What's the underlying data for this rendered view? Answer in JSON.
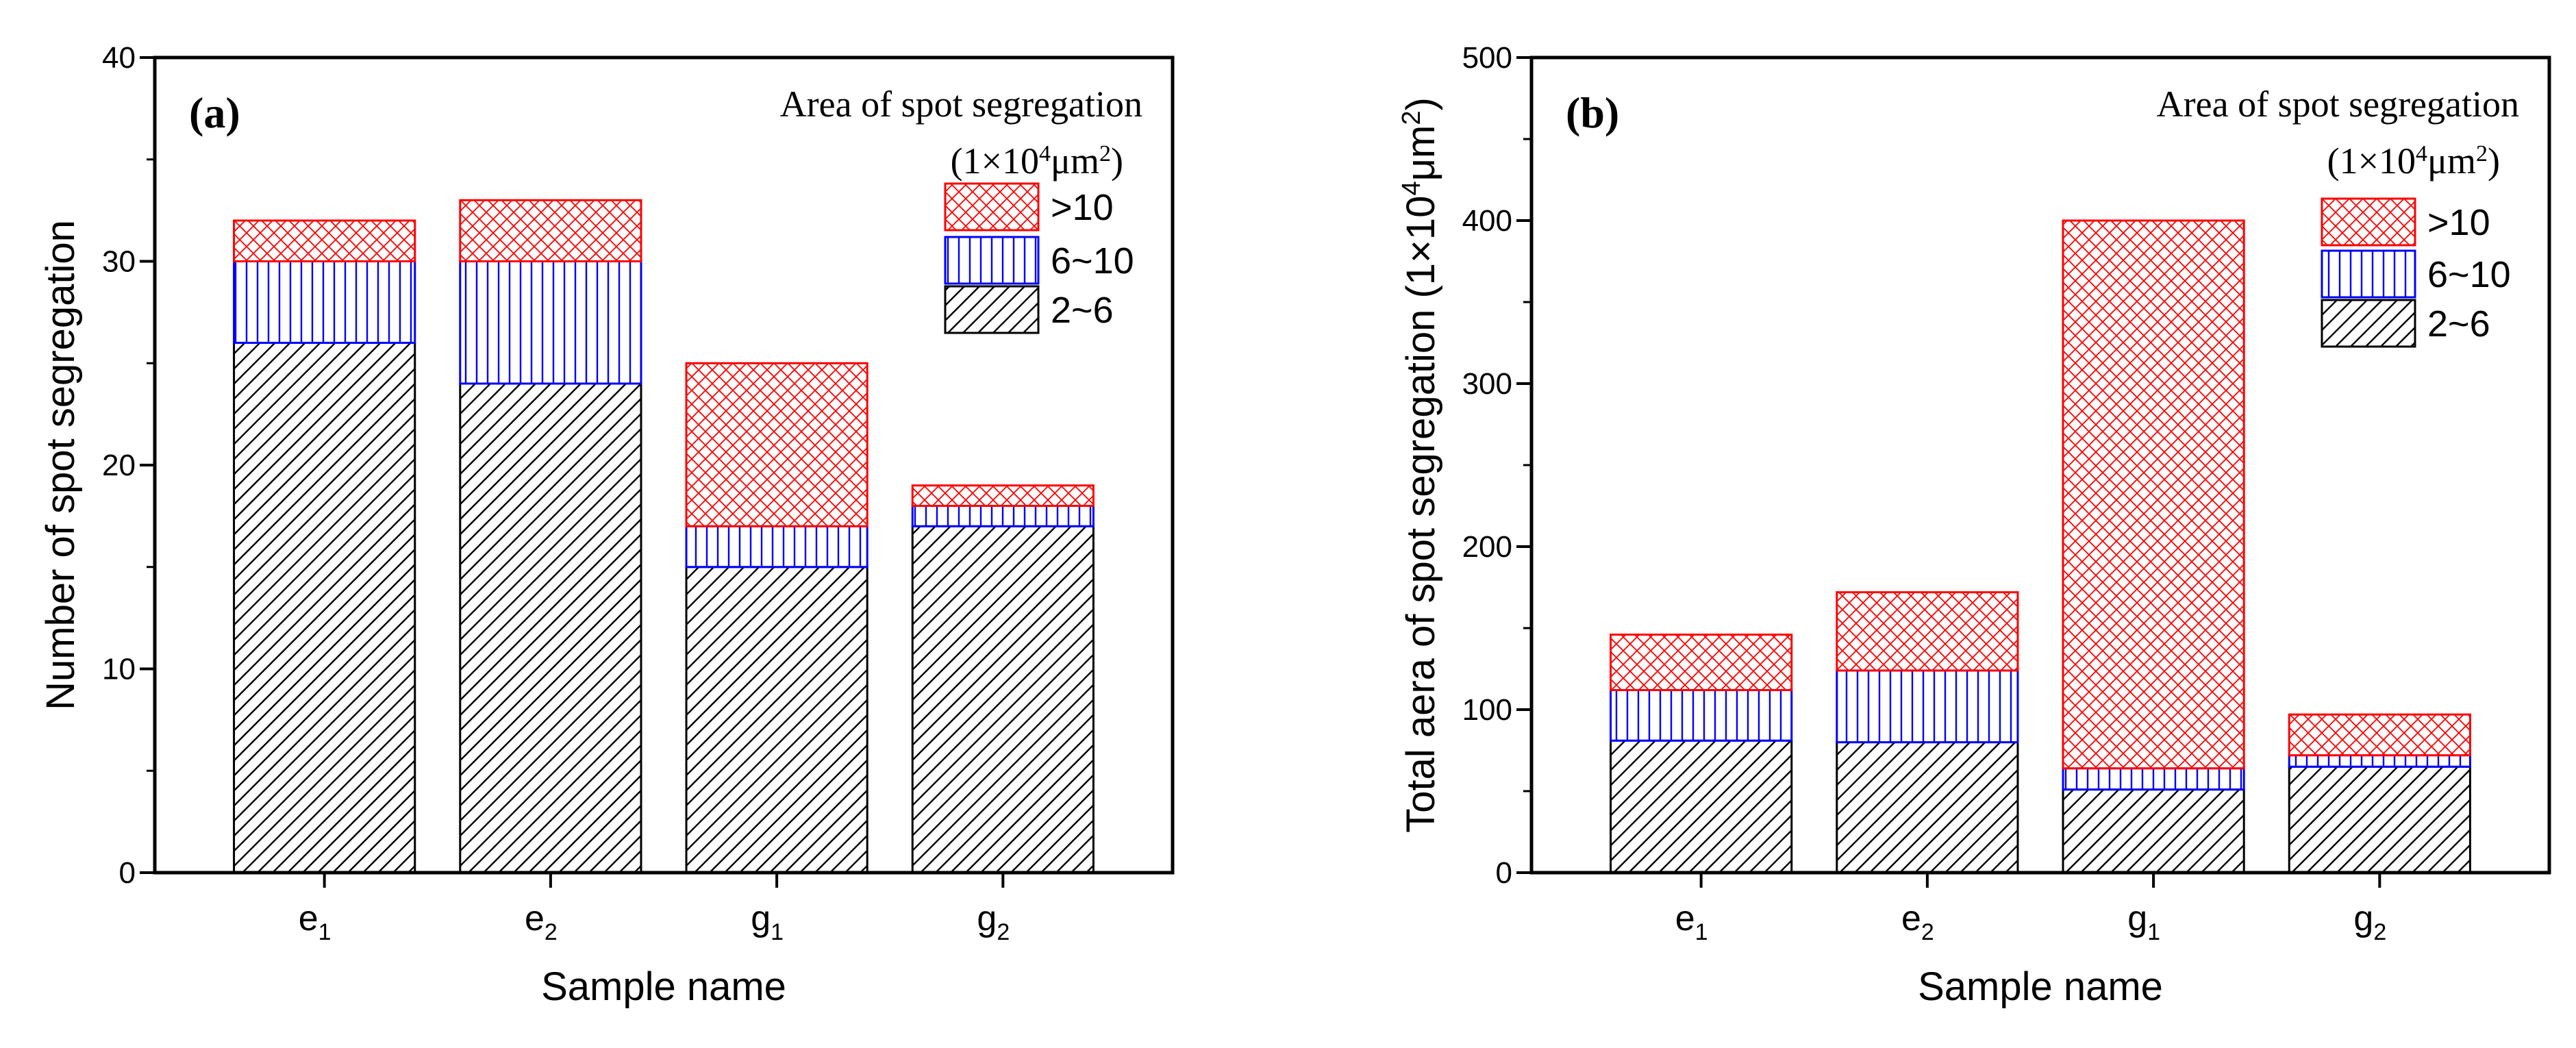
{
  "chart_data": [
    {
      "type": "bar",
      "stacked": true,
      "panel_label": "(a)",
      "categories": [
        {
          "base": "e",
          "sub": "1"
        },
        {
          "base": "e",
          "sub": "2"
        },
        {
          "base": "g",
          "sub": "1"
        },
        {
          "base": "g",
          "sub": "2"
        }
      ],
      "series": [
        {
          "name": "2~6",
          "values": [
            26,
            24,
            15,
            17
          ],
          "color": "#000000",
          "pattern": "diagonal"
        },
        {
          "name": "6~10",
          "values": [
            4,
            6,
            2,
            1
          ],
          "color": "#0000ff",
          "pattern": "vertical"
        },
        {
          "name": ">10",
          "values": [
            2,
            3,
            8,
            1
          ],
          "color": "#ff0000",
          "pattern": "crosshatch"
        }
      ],
      "xlabel": "Sample name",
      "ylabel": "Number of spot segregation",
      "ylim": [
        0,
        40
      ],
      "yticks": [
        "0",
        "10",
        "20",
        "30",
        "40"
      ],
      "legend_title": "Area of spot segregation",
      "legend_unit": {
        "open": "(1×10",
        "exp": "4",
        "mid": "μm",
        "exp2": "2",
        "close": ")"
      },
      "legend_position": "top-right"
    },
    {
      "type": "bar",
      "stacked": true,
      "panel_label": "(b)",
      "categories": [
        {
          "base": "e",
          "sub": "1"
        },
        {
          "base": "e",
          "sub": "2"
        },
        {
          "base": "g",
          "sub": "1"
        },
        {
          "base": "g",
          "sub": "2"
        }
      ],
      "series": [
        {
          "name": "2~6",
          "values": [
            81,
            80,
            51,
            65
          ],
          "color": "#000000",
          "pattern": "diagonal"
        },
        {
          "name": "6~10",
          "values": [
            31,
            44,
            13,
            7
          ],
          "color": "#0000ff",
          "pattern": "vertical"
        },
        {
          "name": ">10",
          "values": [
            34,
            48,
            336,
            25
          ],
          "color": "#ff0000",
          "pattern": "crosshatch"
        }
      ],
      "xlabel": "Sample name",
      "ylabel": {
        "text": "Total aera of spot segregation (1×10",
        "exp": "4",
        "mid": "μm",
        "exp2": "2",
        "close": ")"
      },
      "ylim": [
        0,
        500
      ],
      "yticks": [
        "0",
        "100",
        "200",
        "300",
        "400",
        "500"
      ],
      "legend_title": "Area of spot segregation",
      "legend_unit": {
        "open": "(1×10",
        "exp": "4",
        "mid": "μm",
        "exp2": "2",
        "close": ")"
      },
      "legend_position": "top-right"
    }
  ]
}
